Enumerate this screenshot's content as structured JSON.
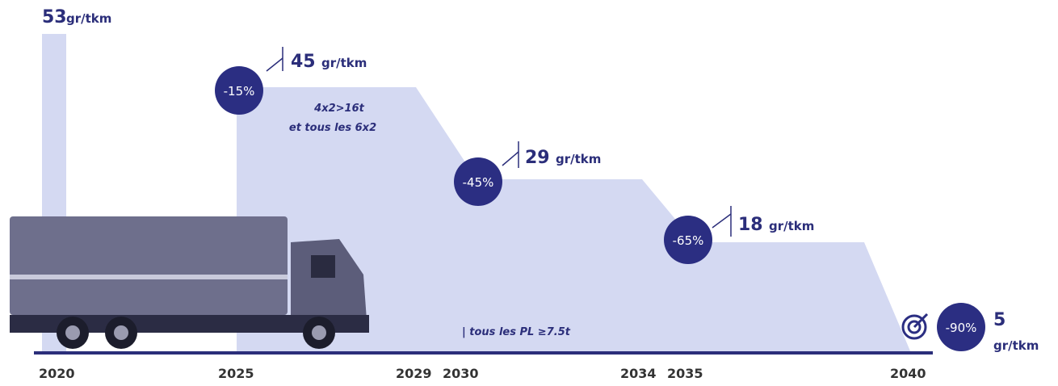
{
  "milestones": [
    {
      "value": "53",
      "unit": "gr/tkm"
    },
    {
      "reduction": "-15%",
      "value": "45",
      "unit": "gr/tkm"
    },
    {
      "reduction": "-45%",
      "value": "29",
      "unit": "gr/tkm"
    },
    {
      "reduction": "-65%",
      "value": "18",
      "unit": "gr/tkm"
    },
    {
      "reduction": "-90%",
      "value": "5",
      "unit": "gr/tkm"
    }
  ],
  "notes": [
    "4x2>16t",
    "et tous les 6x2",
    "| tous les PL ≥7.5t"
  ],
  "years": [
    "2020",
    "2025",
    "2029",
    "2030",
    "2034",
    "2035",
    "2040"
  ]
}
